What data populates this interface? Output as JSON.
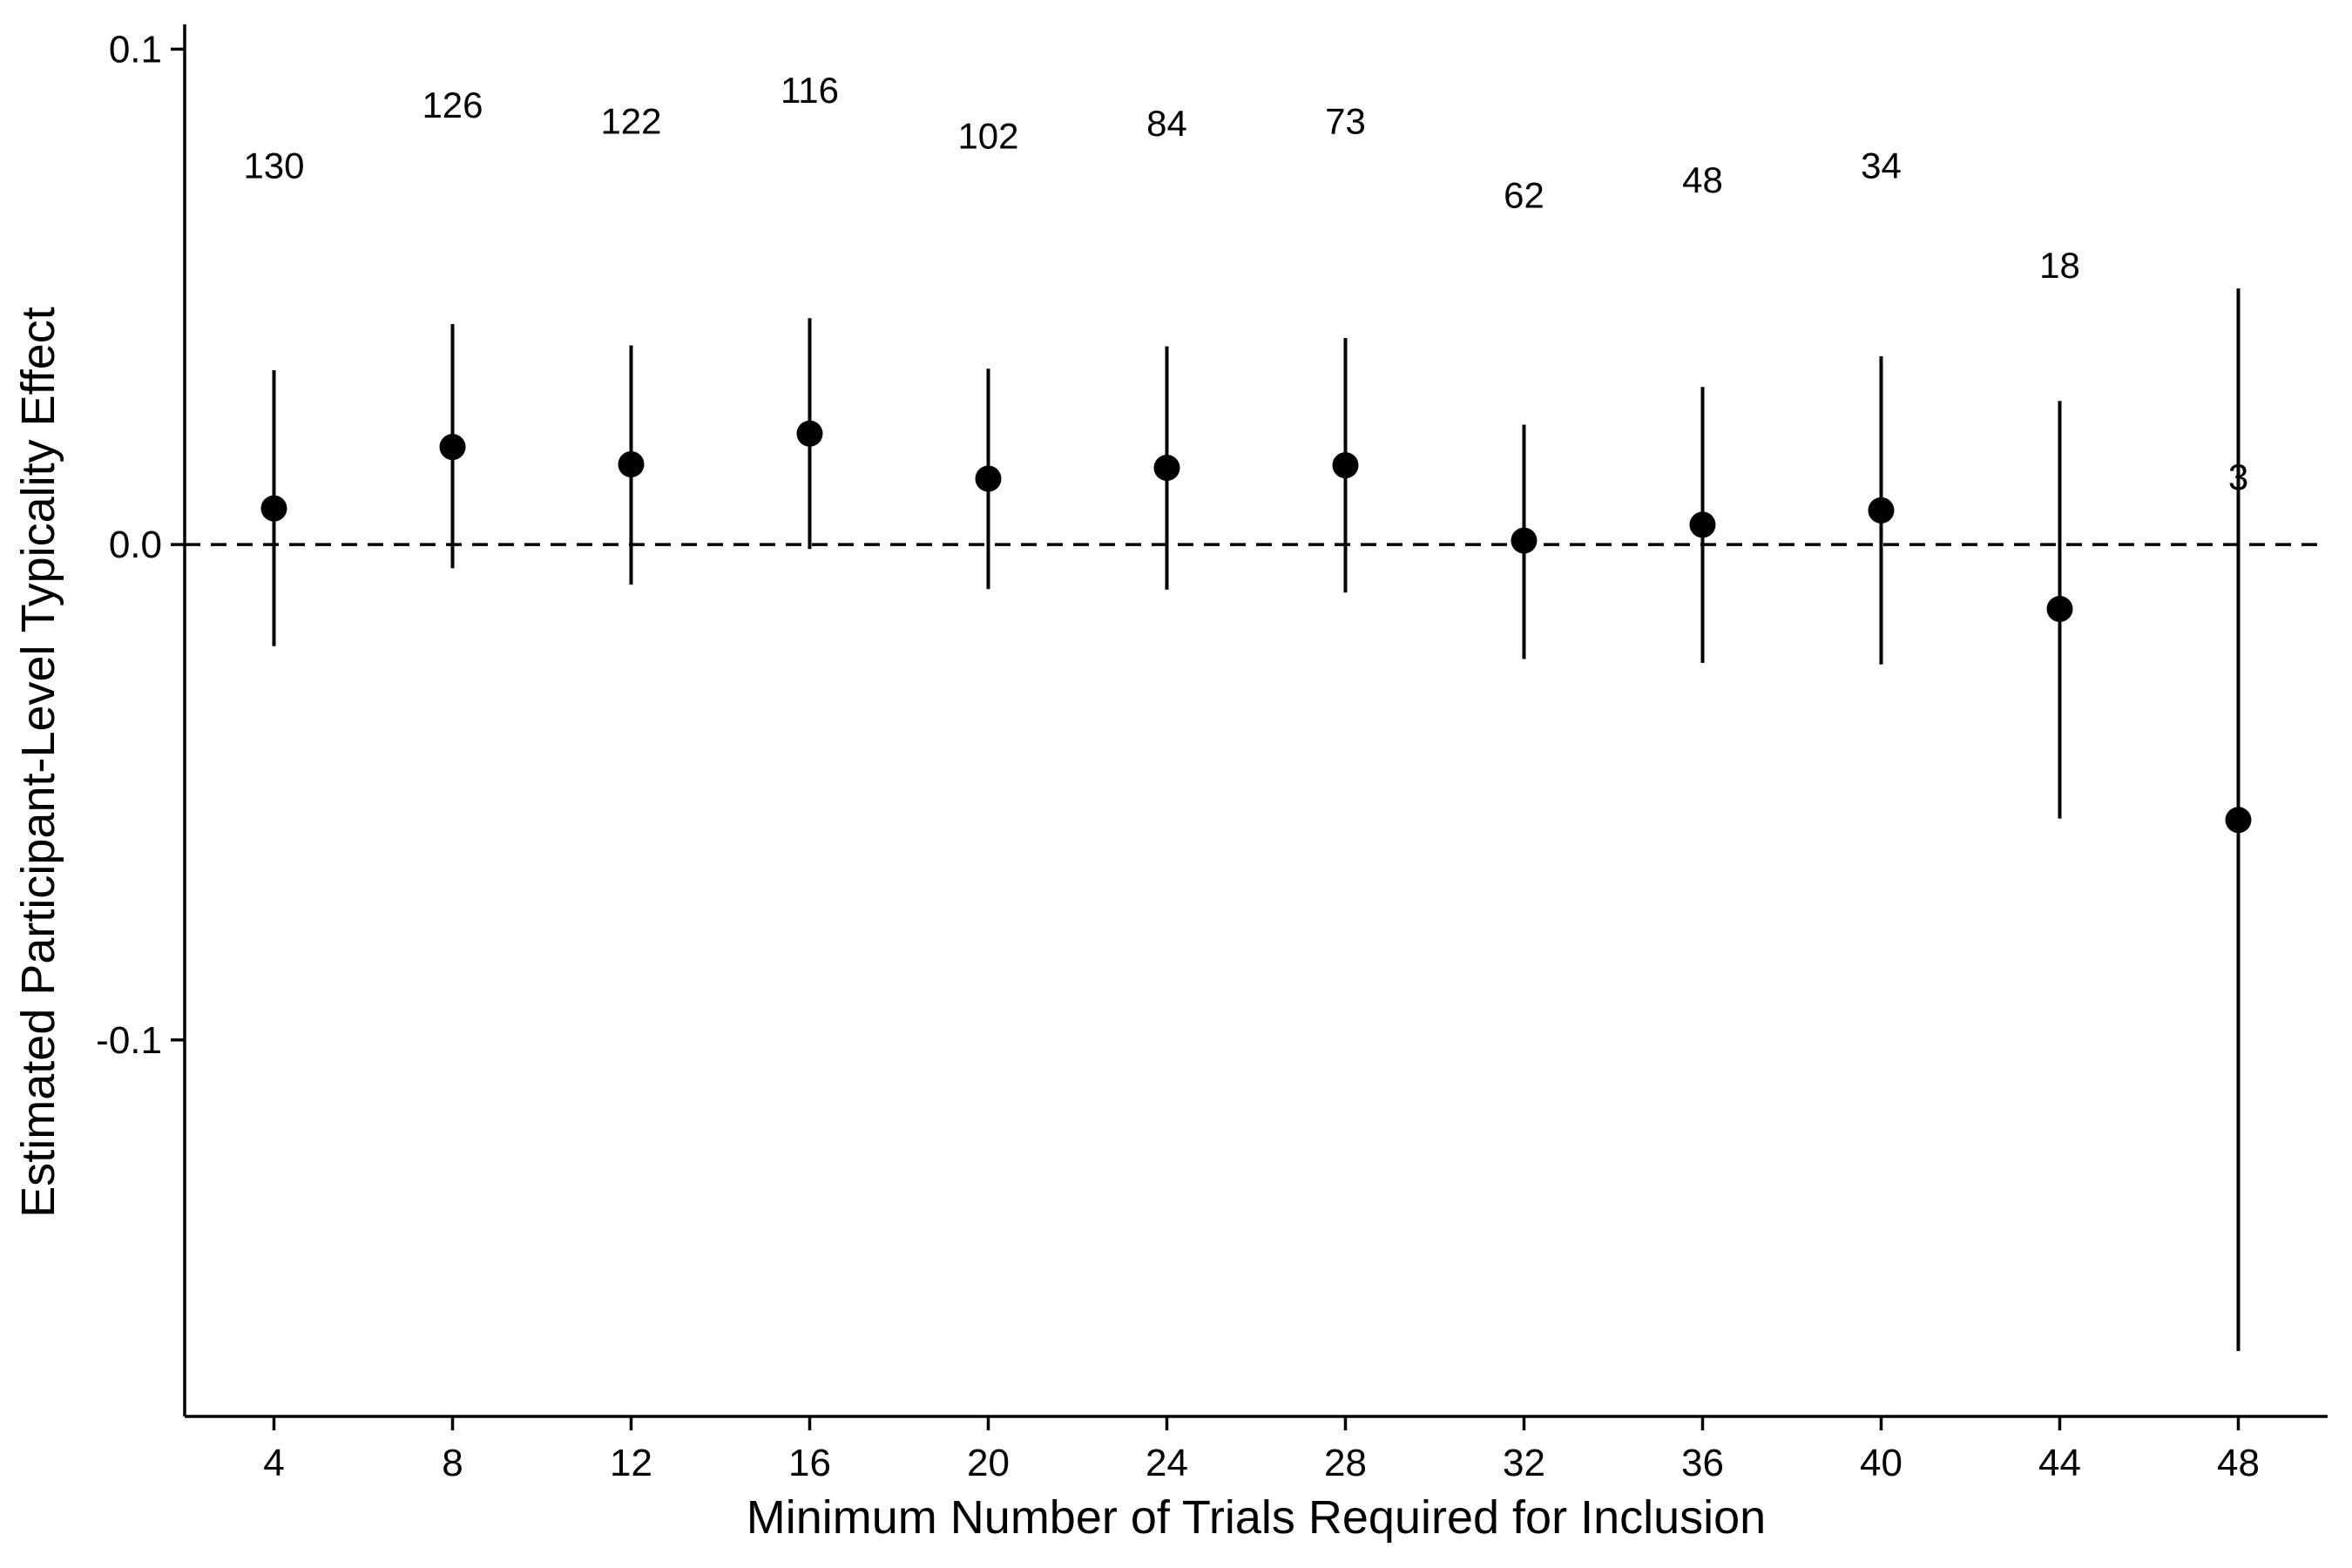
{
  "chart_data": {
    "type": "scatter",
    "subtype": "point-range",
    "title": "",
    "xlabel": "Minimum Number of Trials Required for Inclusion",
    "ylabel": "Estimated Participant-Level Typicality Effect",
    "xlim": [
      2,
      50
    ],
    "ylim": [
      -0.176,
      0.105
    ],
    "xticks": [
      4,
      8,
      12,
      16,
      20,
      24,
      28,
      32,
      36,
      40,
      44,
      48
    ],
    "xtick_labels": [
      "4",
      "8",
      "12",
      "16",
      "20",
      "24",
      "28",
      "32",
      "36",
      "40",
      "44",
      "48"
    ],
    "yticks": [
      -0.1,
      0.0,
      0.1
    ],
    "ytick_labels": [
      "-0.1",
      "0.0",
      "0.1"
    ],
    "reference_line": {
      "y": 0,
      "style": "dashed"
    },
    "grid": false,
    "legend": "none",
    "points": [
      {
        "x": 4,
        "y": 0.0073,
        "lower": -0.0205,
        "upper": 0.0352,
        "n": "130",
        "n_y": 0.0766
      },
      {
        "x": 8,
        "y": 0.0197,
        "lower": -0.0048,
        "upper": 0.0445,
        "n": "126",
        "n_y": 0.0888
      },
      {
        "x": 12,
        "y": 0.0162,
        "lower": -0.0081,
        "upper": 0.0402,
        "n": "122",
        "n_y": 0.0856
      },
      {
        "x": 16,
        "y": 0.0224,
        "lower": -0.0009,
        "upper": 0.0457,
        "n": "116",
        "n_y": 0.0918
      },
      {
        "x": 20,
        "y": 0.0133,
        "lower": -0.009,
        "upper": 0.0355,
        "n": "102",
        "n_y": 0.0826
      },
      {
        "x": 24,
        "y": 0.0155,
        "lower": -0.0091,
        "upper": 0.04,
        "n": "84",
        "n_y": 0.0851
      },
      {
        "x": 28,
        "y": 0.016,
        "lower": -0.0097,
        "upper": 0.0417,
        "n": "73",
        "n_y": 0.0856
      },
      {
        "x": 32,
        "y": 0.0008,
        "lower": -0.0231,
        "upper": 0.0242,
        "n": "62",
        "n_y": 0.0706
      },
      {
        "x": 36,
        "y": 0.004,
        "lower": -0.0239,
        "upper": 0.0318,
        "n": "48",
        "n_y": 0.0737
      },
      {
        "x": 40,
        "y": 0.0069,
        "lower": -0.0242,
        "upper": 0.038,
        "n": "34",
        "n_y": 0.0766
      },
      {
        "x": 44,
        "y": -0.013,
        "lower": -0.0553,
        "upper": 0.029,
        "n": "18",
        "n_y": 0.0565
      },
      {
        "x": 48,
        "y": -0.0556,
        "lower": -0.1628,
        "upper": 0.0517,
        "n": "3",
        "n_y": 0.0137
      }
    ]
  }
}
